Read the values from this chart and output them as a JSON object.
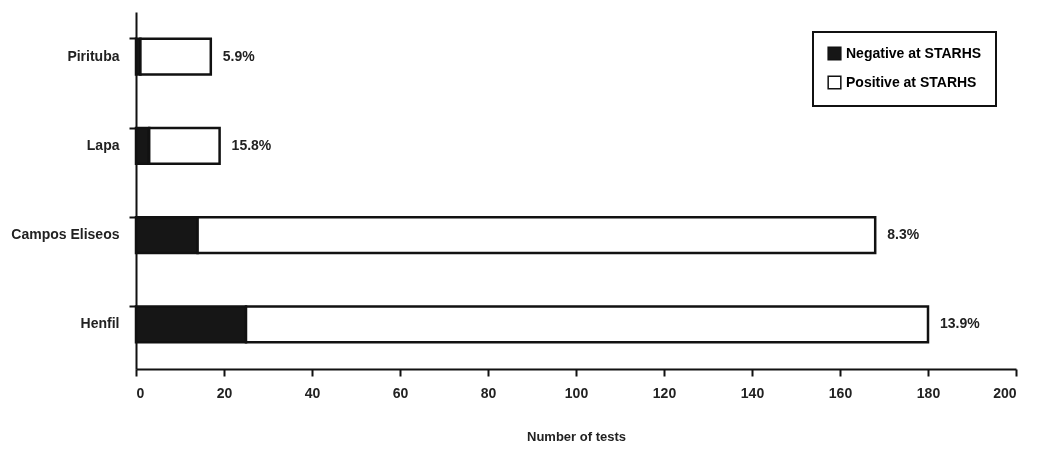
{
  "chart_data": {
    "type": "bar",
    "orientation": "horizontal",
    "stacked": true,
    "xlabel": "Number of tests",
    "categories": [
      "Pirituba",
      "Lapa",
      "Campos Eliseos",
      "Henfil"
    ],
    "series": [
      {
        "name": "Negative at STARHS",
        "color": "#161616",
        "values": [
          1,
          3,
          14,
          25
        ]
      },
      {
        "name": "Positive at STARHS",
        "color": "#ffffff",
        "values": [
          16,
          16,
          154,
          155
        ]
      }
    ],
    "xlim": [
      0,
      200
    ],
    "xticks": [
      0,
      20,
      40,
      60,
      80,
      100,
      120,
      140,
      160,
      180,
      200
    ],
    "grid": false,
    "legend": "top right",
    "annotations": [
      {
        "text": "5.9%",
        "x": 17,
        "y": "Pirituba"
      },
      {
        "text": "15.8%",
        "x": 19,
        "y": "Lapa"
      },
      {
        "text": "8.3%",
        "x": 168,
        "y": "Campos Eliseos"
      },
      {
        "text": "13.9%",
        "x": 180,
        "y": "Henfil"
      }
    ]
  }
}
